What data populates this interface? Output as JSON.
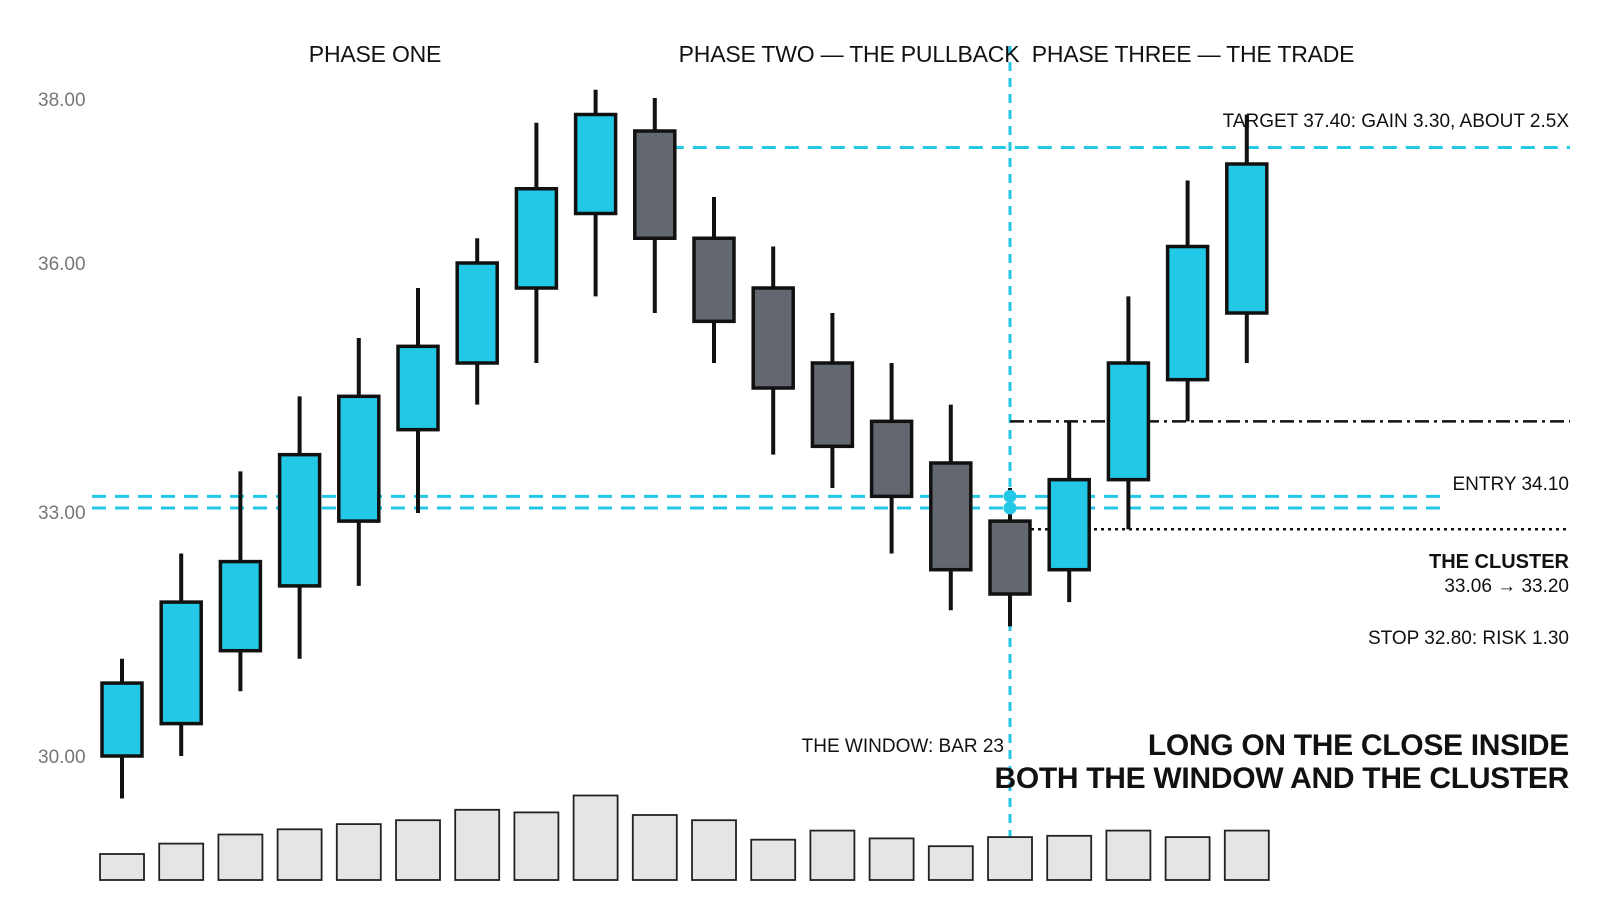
{
  "chart_data": {
    "type": "candlestick",
    "phases": [
      "PHASE ONE",
      "PHASE TWO — THE PULLBACK",
      "PHASE THREE — THE TRADE"
    ],
    "y_ticks": [
      "38.00",
      "36.00",
      "33.00",
      "30.00"
    ],
    "y_tick_values": [
      38.0,
      36.0,
      33.0,
      30.0
    ],
    "candles": [
      {
        "open": 30.0,
        "close": 30.9,
        "high": 31.2,
        "low": 29.5
      },
      {
        "open": 30.4,
        "close": 31.9,
        "high": 32.5,
        "low": 30.0
      },
      {
        "open": 31.3,
        "close": 32.4,
        "high": 33.5,
        "low": 30.8
      },
      {
        "open": 32.1,
        "close": 33.7,
        "high": 34.4,
        "low": 31.2
      },
      {
        "open": 32.9,
        "close": 34.4,
        "high": 35.1,
        "low": 32.1
      },
      {
        "open": 34.0,
        "close": 35.0,
        "high": 35.7,
        "low": 33.0
      },
      {
        "open": 34.8,
        "close": 36.0,
        "high": 36.3,
        "low": 34.3
      },
      {
        "open": 35.7,
        "close": 36.9,
        "high": 37.7,
        "low": 34.8
      },
      {
        "open": 36.6,
        "close": 37.8,
        "high": 38.1,
        "low": 35.6
      },
      {
        "open": 37.6,
        "close": 36.3,
        "high": 38.0,
        "low": 35.4
      },
      {
        "open": 36.3,
        "close": 35.3,
        "high": 36.8,
        "low": 34.8
      },
      {
        "open": 35.7,
        "close": 34.5,
        "high": 36.2,
        "low": 33.7
      },
      {
        "open": 34.8,
        "close": 33.8,
        "high": 35.4,
        "low": 33.3
      },
      {
        "open": 34.1,
        "close": 33.2,
        "high": 34.8,
        "low": 32.5
      },
      {
        "open": 33.6,
        "close": 32.3,
        "high": 34.3,
        "low": 31.8
      },
      {
        "open": 32.9,
        "close": 32.0,
        "high": 33.3,
        "low": 31.6
      },
      {
        "open": 32.3,
        "close": 33.4,
        "high": 34.1,
        "low": 31.9
      },
      {
        "open": 33.4,
        "close": 34.8,
        "high": 35.6,
        "low": 32.8
      },
      {
        "open": 34.6,
        "close": 36.2,
        "high": 37.0,
        "low": 34.1
      },
      {
        "open": 35.4,
        "close": 37.2,
        "high": 37.8,
        "low": 34.8
      }
    ],
    "volume": [
      2.0,
      2.8,
      3.5,
      3.9,
      4.3,
      4.6,
      5.4,
      5.2,
      6.5,
      5.0,
      4.6,
      3.1,
      3.8,
      3.2,
      2.6,
      3.3,
      3.4,
      3.8,
      3.3,
      3.8
    ],
    "annotations": {
      "target": "TARGET 37.40: GAIN 3.30, ABOUT 2.5X",
      "entry": "ENTRY 34.10",
      "cluster_title": "THE CLUSTER",
      "cluster_range": "33.06 → 33.20",
      "stop": "STOP 32.80: RISK 1.30",
      "window": "THE WINDOW: BAR 23",
      "headline_line1": "LONG ON THE CLOSE INSIDE",
      "headline_line2": "BOTH THE WINDOW AND THE CLUSTER"
    },
    "levels": {
      "target": 37.4,
      "entry": 34.1,
      "cluster_high": 33.2,
      "cluster_low": 33.06,
      "stop": 32.8
    },
    "window_bar_index": 15,
    "colors": {
      "bull": "#22c8e6",
      "bear": "#636870",
      "guide": "#22c8e6",
      "volume": "#e4e5e7",
      "outline": "#111111"
    }
  }
}
